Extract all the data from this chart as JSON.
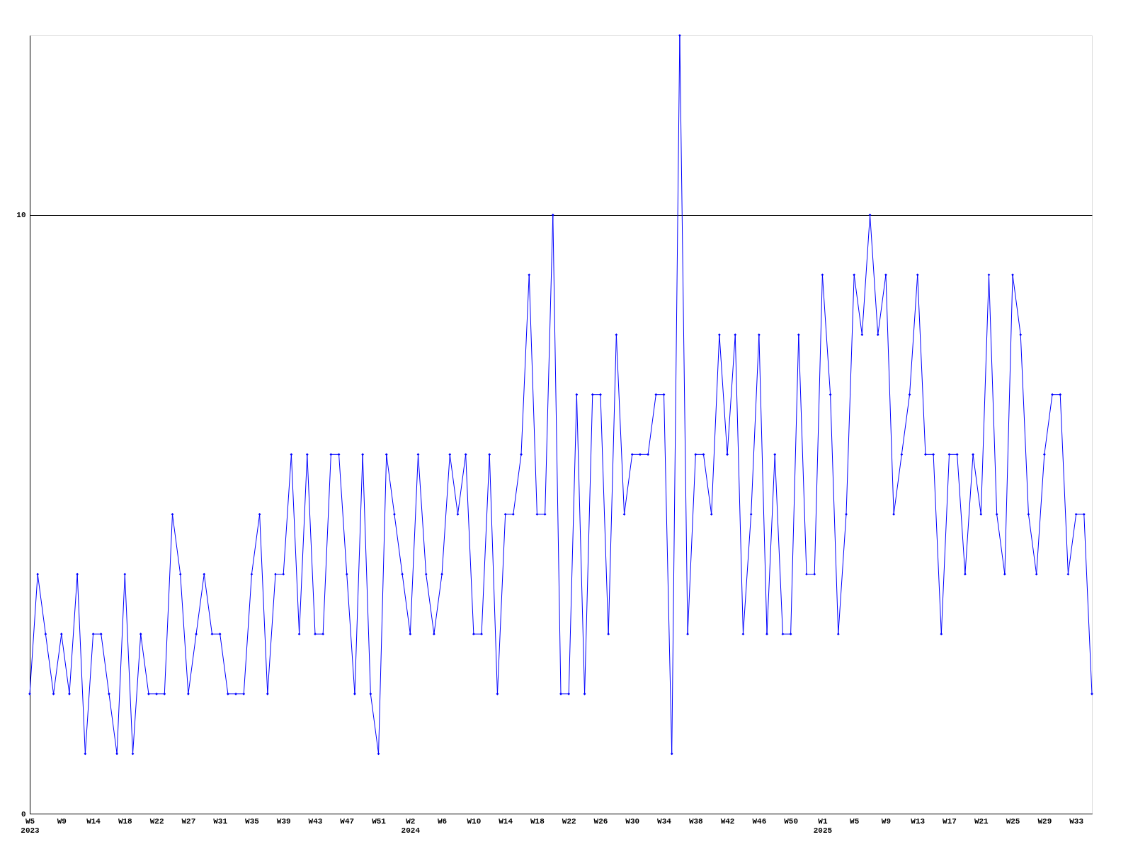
{
  "chart_data": {
    "type": "line",
    "categories": [
      "W5\n2023",
      null,
      null,
      null,
      "W9",
      null,
      null,
      null,
      "W14",
      null,
      null,
      null,
      "W18",
      null,
      null,
      null,
      "W22",
      null,
      null,
      null,
      "W27",
      null,
      null,
      null,
      "W31",
      null,
      null,
      null,
      "W35",
      null,
      null,
      null,
      "W39",
      null,
      null,
      null,
      "W43",
      null,
      null,
      null,
      "W47",
      null,
      null,
      null,
      "W51",
      null,
      null,
      null,
      "W2\n2024",
      null,
      null,
      null,
      "W6",
      null,
      null,
      null,
      "W10",
      null,
      null,
      null,
      "W14",
      null,
      null,
      null,
      "W18",
      null,
      null,
      null,
      "W22",
      null,
      null,
      null,
      "W26",
      null,
      null,
      null,
      "W30",
      null,
      null,
      null,
      "W34",
      null,
      null,
      null,
      "W38",
      null,
      null,
      null,
      "W42",
      null,
      null,
      null,
      "W46",
      null,
      null,
      null,
      "W50",
      null,
      null,
      null,
      "W1\n2025",
      null,
      null,
      null,
      "W5",
      null,
      null,
      null,
      "W9",
      null,
      null,
      null,
      "W13",
      null,
      null,
      null,
      "W17",
      null,
      null,
      null,
      "W21",
      null,
      null,
      null,
      "W25",
      null,
      null,
      null,
      "W29",
      null,
      null,
      null,
      "W33",
      null,
      null
    ],
    "series": [
      {
        "color": "#0000ff",
        "values": [
          2,
          4,
          3,
          2,
          3,
          2,
          4,
          1,
          3,
          3,
          2,
          1,
          4,
          1,
          3,
          2,
          2,
          2,
          5,
          4,
          2,
          3,
          4,
          3,
          3,
          2,
          2,
          2,
          4,
          5,
          2,
          4,
          4,
          6,
          3,
          6,
          3,
          3,
          6,
          6,
          4,
          2,
          6,
          2,
          1,
          6,
          5,
          4,
          3,
          6,
          4,
          3,
          4,
          6,
          5,
          6,
          3,
          3,
          6,
          2,
          5,
          5,
          6,
          9,
          5,
          5,
          10,
          2,
          2,
          7,
          2,
          7,
          7,
          3,
          8,
          5,
          6,
          6,
          6,
          7,
          7,
          1,
          13,
          3,
          6,
          6,
          5,
          8,
          6,
          8,
          3,
          5,
          8,
          3,
          6,
          3,
          3,
          8,
          4,
          4,
          9,
          7,
          3,
          5,
          9,
          8,
          10,
          8,
          9,
          5,
          6,
          7,
          9,
          6,
          6,
          3,
          6,
          6,
          4,
          6,
          5,
          9,
          5,
          4,
          9,
          8,
          5,
          4,
          6,
          7,
          7,
          4,
          5,
          5,
          2
        ]
      }
    ],
    "ylim": [
      0,
      13
    ],
    "yticks": [
      0,
      10
    ],
    "grid": "y",
    "marker": "diamond",
    "line_style": "solid"
  }
}
